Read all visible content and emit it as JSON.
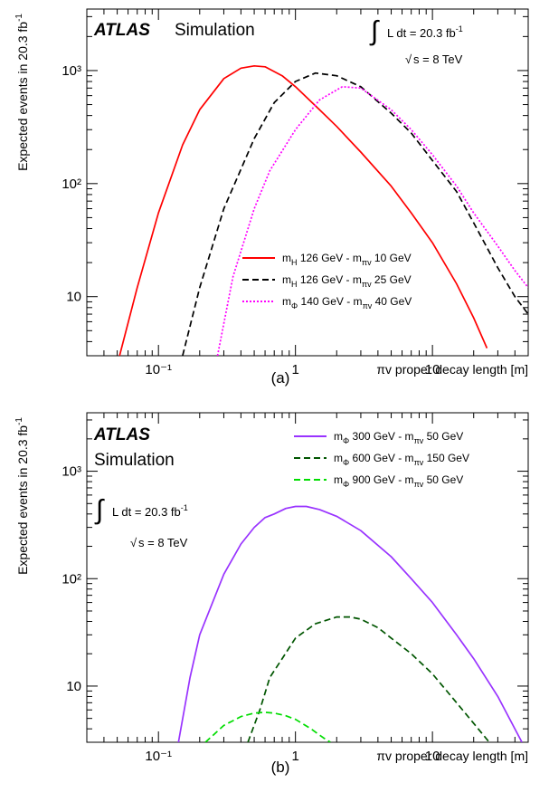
{
  "chart_data": [
    {
      "panel_label": "(a)",
      "type": "line",
      "xlabel": "πv proper decay length [m]",
      "ylabel": "Expected events in 20.3 fb",
      "ylabel_sup": "-1",
      "xscale": "log",
      "yscale": "log",
      "xlim": [
        0.03,
        50
      ],
      "ylim": [
        3,
        3500
      ],
      "x_ticks": [
        "10⁻¹",
        "1",
        "10"
      ],
      "y_ticks": [
        "10",
        "10²",
        "10³"
      ],
      "legend_position": "lower-right",
      "atlas_label": "ATLAS",
      "atlas_sublabel": "Simulation",
      "lumi_text": "L dt = 20.3 fb",
      "lumi_sup": "-1",
      "energy_text": "s = 8 TeV",
      "series": [
        {
          "legend_parts": [
            "m",
            "H",
            " 126 GeV - m",
            "πv",
            " 10 GeV"
          ],
          "color": "#ff0000",
          "dash": "solid",
          "x": [
            0.052,
            0.07,
            0.1,
            0.15,
            0.2,
            0.3,
            0.4,
            0.5,
            0.6,
            0.8,
            1.0,
            1.5,
            2,
            3,
            5,
            7,
            10,
            15,
            20,
            25
          ],
          "y": [
            3,
            12,
            55,
            220,
            450,
            850,
            1050,
            1100,
            1080,
            900,
            720,
            450,
            320,
            190,
            95,
            55,
            30,
            13,
            6.5,
            3.5
          ]
        },
        {
          "legend_parts": [
            "m",
            "H",
            " 126 GeV - m",
            "πv",
            " 25 GeV"
          ],
          "color": "#000000",
          "dash": "dashed",
          "x": [
            0.15,
            0.2,
            0.3,
            0.5,
            0.7,
            1.0,
            1.4,
            2,
            3,
            5,
            7,
            10,
            15,
            20,
            30,
            40,
            50
          ],
          "y": [
            3,
            12,
            60,
            250,
            520,
            800,
            950,
            900,
            720,
            420,
            280,
            160,
            85,
            45,
            18,
            10,
            7
          ]
        },
        {
          "legend_parts": [
            "m",
            "Φ",
            " 140 GeV - m",
            "πv",
            " 40 GeV"
          ],
          "color": "#ff00ff",
          "dash": "dotted",
          "x": [
            0.27,
            0.35,
            0.5,
            0.65,
            0.7,
            1.0,
            1.5,
            2.2,
            3,
            5,
            7,
            10,
            15,
            20,
            30,
            40,
            50
          ],
          "y": [
            3,
            15,
            60,
            130,
            150,
            300,
            550,
            720,
            700,
            450,
            300,
            180,
            95,
            55,
            28,
            17,
            12
          ]
        }
      ]
    },
    {
      "panel_label": "(b)",
      "type": "line",
      "xlabel": "πv proper decay length [m]",
      "ylabel": "Expected events in 20.3 fb",
      "ylabel_sup": "-1",
      "xscale": "log",
      "yscale": "log",
      "xlim": [
        0.03,
        50
      ],
      "ylim": [
        3,
        3500
      ],
      "x_ticks": [
        "10⁻¹",
        "1",
        "10"
      ],
      "y_ticks": [
        "10",
        "10²",
        "10³"
      ],
      "legend_position": "top-right",
      "atlas_label": "ATLAS",
      "atlas_sublabel": "Simulation",
      "lumi_text": "L dt = 20.3 fb",
      "lumi_sup": "-1",
      "energy_text": "s = 8 TeV",
      "series": [
        {
          "legend_parts": [
            "m",
            "Φ",
            " 300 GeV - m",
            "πv",
            " 50 GeV"
          ],
          "color": "#9933ff",
          "dash": "solid",
          "x": [
            0.14,
            0.17,
            0.2,
            0.3,
            0.4,
            0.5,
            0.6,
            0.7,
            0.85,
            1.0,
            1.2,
            1.5,
            2,
            3,
            5,
            7,
            10,
            15,
            20,
            30,
            45
          ],
          "y": [
            3,
            12,
            30,
            110,
            210,
            300,
            370,
            400,
            450,
            470,
            470,
            440,
            380,
            280,
            160,
            100,
            60,
            30,
            18,
            8,
            3
          ]
        },
        {
          "legend_parts": [
            "m",
            "Φ",
            " 600 GeV - m",
            "πv",
            " 150 GeV"
          ],
          "color": "#005500",
          "dash": "dashed",
          "x": [
            0.45,
            0.55,
            0.65,
            0.8,
            1.0,
            1.4,
            2.0,
            2.5,
            3,
            4,
            5,
            7,
            10,
            15,
            20,
            26
          ],
          "y": [
            3,
            6,
            12,
            18,
            28,
            38,
            44,
            44,
            42,
            35,
            28,
            20,
            13,
            7,
            4.5,
            3
          ]
        },
        {
          "legend_parts": [
            "m",
            "Φ",
            " 900 GeV - m",
            "πv",
            " 50 GeV"
          ],
          "color": "#00dd00",
          "dash": "dashed",
          "x": [
            0.22,
            0.3,
            0.4,
            0.5,
            0.6,
            0.7,
            0.85,
            1.0,
            1.3,
            1.6,
            1.8
          ],
          "y": [
            3,
            4.3,
            5.2,
            5.6,
            5.7,
            5.6,
            5.3,
            4.9,
            4.0,
            3.3,
            3.0
          ]
        }
      ]
    }
  ]
}
